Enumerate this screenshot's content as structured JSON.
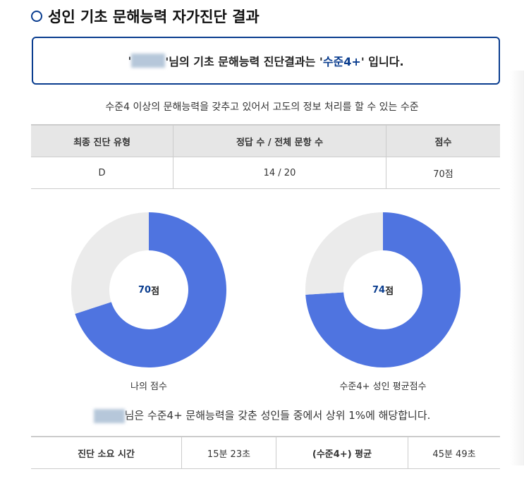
{
  "header": {
    "title": "성인 기초 문해능력 자가진단 결과"
  },
  "result": {
    "prefix": "'",
    "middle": "'님의 기초 문해능력 진단결과는 '",
    "level": "수준4+",
    "suffix": "' 입니다."
  },
  "description": "수준4 이상의 문해능력을 갖추고 있어서 고도의 정보 처리를 할 수 있는 수준",
  "summary_table": {
    "headers": [
      "최종 진단 유형",
      "정답 수 / 전체 문항 수",
      "점수"
    ],
    "row": [
      "D",
      "14 / 20",
      "70점"
    ]
  },
  "chart_data": [
    {
      "type": "pie",
      "label": "나의 점수",
      "value": 70,
      "max": 100,
      "center_value": "70",
      "center_unit": "점",
      "colors": {
        "filled": "#4f74e0",
        "empty": "#ebebeb"
      }
    },
    {
      "type": "pie",
      "label": "수준4+ 성인 평균점수",
      "value": 74,
      "max": 100,
      "center_value": "74",
      "center_unit": "점",
      "colors": {
        "filled": "#4f74e0",
        "empty": "#ebebeb"
      }
    }
  ],
  "percentile_text": "님은 수준4+ 문해능력을 갖춘 성인들 중에서 상위 1%에 해당합니다.",
  "time_table": {
    "cells": [
      "진단 소요 시간",
      "15분 23초",
      "(수준4+) 평균",
      "45분 49초"
    ]
  }
}
